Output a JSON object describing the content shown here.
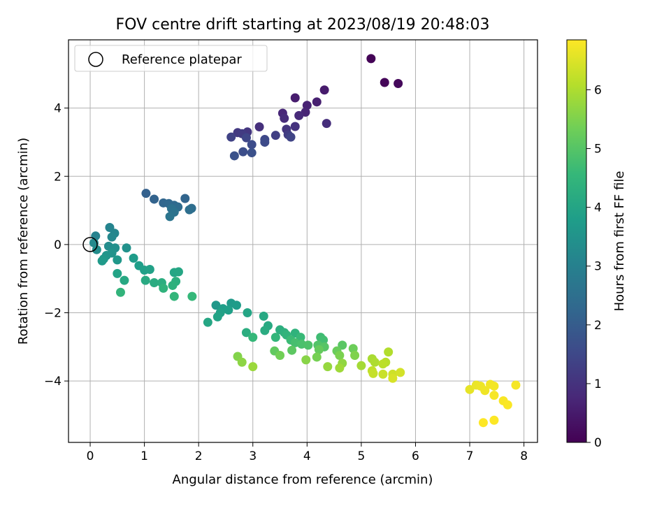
{
  "chart_data": {
    "type": "scatter",
    "title": "FOV centre drift starting at 2023/08/19 20:48:03",
    "xlabel": "Angular distance from reference (arcmin)",
    "ylabel": "Rotation from reference (arcmin)",
    "xlim": [
      -0.4,
      8.25
    ],
    "ylim": [
      -5.8,
      6.0
    ],
    "xticks": [
      0,
      1,
      2,
      3,
      4,
      5,
      6,
      7,
      8
    ],
    "yticks": [
      -4,
      -2,
      0,
      2,
      4
    ],
    "xtick_labels": [
      "0",
      "1",
      "2",
      "3",
      "4",
      "5",
      "6",
      "7",
      "8"
    ],
    "ytick_labels": [
      "−4",
      "−2",
      "0",
      "2",
      "4"
    ],
    "grid": true,
    "legend": {
      "position": "top-left",
      "entries": [
        {
          "label": "Reference platepar",
          "marker": "open-circle"
        }
      ]
    },
    "reference_point": {
      "x": 0,
      "y": 0
    },
    "colorbar": {
      "label": "Hours from first FF file",
      "colormap": "viridis",
      "range": [
        0,
        6.85
      ],
      "ticks": [
        0,
        1,
        2,
        3,
        4,
        5,
        6
      ],
      "tick_labels": [
        "0",
        "1",
        "2",
        "3",
        "4",
        "5",
        "6"
      ]
    },
    "points": [
      {
        "x": 5.18,
        "y": 5.45,
        "c": 0.05
      },
      {
        "x": 5.43,
        "y": 4.75,
        "c": 0.1
      },
      {
        "x": 5.68,
        "y": 4.72,
        "c": 0.15
      },
      {
        "x": 4.32,
        "y": 4.53,
        "c": 0.5
      },
      {
        "x": 3.78,
        "y": 4.3,
        "c": 0.55
      },
      {
        "x": 4.18,
        "y": 4.18,
        "c": 0.6
      },
      {
        "x": 4.0,
        "y": 4.08,
        "c": 0.65
      },
      {
        "x": 3.97,
        "y": 3.88,
        "c": 0.7
      },
      {
        "x": 3.55,
        "y": 3.85,
        "c": 0.75
      },
      {
        "x": 3.85,
        "y": 3.78,
        "c": 0.8
      },
      {
        "x": 3.58,
        "y": 3.7,
        "c": 0.85
      },
      {
        "x": 4.36,
        "y": 3.55,
        "c": 0.9
      },
      {
        "x": 3.12,
        "y": 3.45,
        "c": 0.95
      },
      {
        "x": 3.78,
        "y": 3.46,
        "c": 1.0
      },
      {
        "x": 3.62,
        "y": 3.38,
        "c": 1.05
      },
      {
        "x": 2.9,
        "y": 3.3,
        "c": 1.1
      },
      {
        "x": 2.72,
        "y": 3.28,
        "c": 1.15
      },
      {
        "x": 2.8,
        "y": 3.25,
        "c": 1.2
      },
      {
        "x": 3.65,
        "y": 3.22,
        "c": 1.25
      },
      {
        "x": 3.42,
        "y": 3.2,
        "c": 1.3
      },
      {
        "x": 2.6,
        "y": 3.15,
        "c": 1.35
      },
      {
        "x": 3.7,
        "y": 3.15,
        "c": 1.4
      },
      {
        "x": 2.88,
        "y": 3.13,
        "c": 1.45
      },
      {
        "x": 3.22,
        "y": 3.08,
        "c": 1.5
      },
      {
        "x": 3.22,
        "y": 3.0,
        "c": 1.55
      },
      {
        "x": 2.98,
        "y": 2.93,
        "c": 1.6
      },
      {
        "x": 2.82,
        "y": 2.72,
        "c": 1.65
      },
      {
        "x": 2.98,
        "y": 2.69,
        "c": 1.7
      },
      {
        "x": 2.66,
        "y": 2.6,
        "c": 1.75
      },
      {
        "x": 1.03,
        "y": 1.5,
        "c": 2.1
      },
      {
        "x": 1.18,
        "y": 1.33,
        "c": 2.15
      },
      {
        "x": 1.75,
        "y": 1.35,
        "c": 2.2
      },
      {
        "x": 1.35,
        "y": 1.22,
        "c": 2.25
      },
      {
        "x": 1.45,
        "y": 1.2,
        "c": 2.3
      },
      {
        "x": 1.55,
        "y": 1.15,
        "c": 2.35
      },
      {
        "x": 1.62,
        "y": 1.1,
        "c": 2.4
      },
      {
        "x": 1.87,
        "y": 1.06,
        "c": 2.45
      },
      {
        "x": 1.83,
        "y": 1.02,
        "c": 2.5
      },
      {
        "x": 1.5,
        "y": 1.05,
        "c": 2.55
      },
      {
        "x": 1.55,
        "y": 0.95,
        "c": 2.6
      },
      {
        "x": 1.47,
        "y": 0.82,
        "c": 2.65
      },
      {
        "x": 0.1,
        "y": 0.25,
        "c": 3.05
      },
      {
        "x": 0.36,
        "y": 0.5,
        "c": 3.1
      },
      {
        "x": 0.45,
        "y": 0.33,
        "c": 3.15
      },
      {
        "x": 0.4,
        "y": 0.22,
        "c": 3.2
      },
      {
        "x": 0.07,
        "y": 0.05,
        "c": 3.25
      },
      {
        "x": 0.34,
        "y": -0.05,
        "c": 3.3
      },
      {
        "x": 0.12,
        "y": -0.15,
        "c": 3.35
      },
      {
        "x": 0.46,
        "y": -0.1,
        "c": 3.4
      },
      {
        "x": 0.67,
        "y": -0.1,
        "c": 3.45
      },
      {
        "x": 0.4,
        "y": -0.25,
        "c": 3.5
      },
      {
        "x": 0.3,
        "y": -0.32,
        "c": 3.55
      },
      {
        "x": 0.25,
        "y": -0.42,
        "c": 3.6
      },
      {
        "x": 0.5,
        "y": -0.45,
        "c": 3.65
      },
      {
        "x": 0.22,
        "y": -0.48,
        "c": 3.7
      },
      {
        "x": 0.8,
        "y": -0.4,
        "c": 3.75
      },
      {
        "x": 0.9,
        "y": -0.62,
        "c": 3.8
      },
      {
        "x": 1.0,
        "y": -0.75,
        "c": 3.85
      },
      {
        "x": 1.1,
        "y": -0.73,
        "c": 3.9
      },
      {
        "x": 0.5,
        "y": -0.85,
        "c": 3.95
      },
      {
        "x": 1.55,
        "y": -0.82,
        "c": 4.0
      },
      {
        "x": 1.63,
        "y": -0.8,
        "c": 4.05
      },
      {
        "x": 0.63,
        "y": -1.05,
        "c": 4.1
      },
      {
        "x": 1.02,
        "y": -1.05,
        "c": 4.15
      },
      {
        "x": 1.18,
        "y": -1.12,
        "c": 4.2
      },
      {
        "x": 1.32,
        "y": -1.12,
        "c": 4.25
      },
      {
        "x": 1.58,
        "y": -1.08,
        "c": 4.3
      },
      {
        "x": 1.52,
        "y": -1.2,
        "c": 4.35
      },
      {
        "x": 1.35,
        "y": -1.28,
        "c": 4.4
      },
      {
        "x": 0.56,
        "y": -1.4,
        "c": 4.45
      },
      {
        "x": 1.55,
        "y": -1.52,
        "c": 4.5
      },
      {
        "x": 1.88,
        "y": -1.52,
        "c": 4.55
      },
      {
        "x": 2.32,
        "y": -1.78,
        "c": 3.65
      },
      {
        "x": 2.6,
        "y": -1.72,
        "c": 3.7
      },
      {
        "x": 2.7,
        "y": -1.78,
        "c": 3.75
      },
      {
        "x": 2.45,
        "y": -1.88,
        "c": 3.8
      },
      {
        "x": 2.55,
        "y": -1.92,
        "c": 3.85
      },
      {
        "x": 2.4,
        "y": -2.0,
        "c": 3.9
      },
      {
        "x": 2.35,
        "y": -2.12,
        "c": 3.95
      },
      {
        "x": 2.9,
        "y": -2.0,
        "c": 4.0
      },
      {
        "x": 2.17,
        "y": -2.28,
        "c": 4.05
      },
      {
        "x": 3.2,
        "y": -2.1,
        "c": 4.1
      },
      {
        "x": 3.28,
        "y": -2.38,
        "c": 4.15
      },
      {
        "x": 3.22,
        "y": -2.52,
        "c": 4.2
      },
      {
        "x": 2.88,
        "y": -2.58,
        "c": 4.25
      },
      {
        "x": 3.5,
        "y": -2.5,
        "c": 4.3
      },
      {
        "x": 3.58,
        "y": -2.58,
        "c": 4.35
      },
      {
        "x": 3.78,
        "y": -2.6,
        "c": 4.4
      },
      {
        "x": 3.62,
        "y": -2.65,
        "c": 4.45
      },
      {
        "x": 3.42,
        "y": -2.72,
        "c": 4.5
      },
      {
        "x": 3.0,
        "y": -2.72,
        "c": 4.55
      },
      {
        "x": 3.88,
        "y": -2.72,
        "c": 4.6
      },
      {
        "x": 3.7,
        "y": -2.8,
        "c": 4.65
      },
      {
        "x": 4.25,
        "y": -2.72,
        "c": 4.7
      },
      {
        "x": 4.3,
        "y": -2.8,
        "c": 4.75
      },
      {
        "x": 3.78,
        "y": -2.88,
        "c": 4.8
      },
      {
        "x": 3.9,
        "y": -2.92,
        "c": 4.85
      },
      {
        "x": 4.02,
        "y": -2.95,
        "c": 4.9
      },
      {
        "x": 4.2,
        "y": -2.95,
        "c": 4.95
      },
      {
        "x": 4.32,
        "y": -3.0,
        "c": 5.0
      },
      {
        "x": 4.65,
        "y": -2.95,
        "c": 5.05
      },
      {
        "x": 3.72,
        "y": -3.1,
        "c": 5.1
      },
      {
        "x": 3.4,
        "y": -3.12,
        "c": 5.15
      },
      {
        "x": 4.22,
        "y": -3.08,
        "c": 5.2
      },
      {
        "x": 4.55,
        "y": -3.12,
        "c": 5.25
      },
      {
        "x": 4.85,
        "y": -3.05,
        "c": 5.3
      },
      {
        "x": 3.5,
        "y": -3.25,
        "c": 5.35
      },
      {
        "x": 4.18,
        "y": -3.3,
        "c": 5.4
      },
      {
        "x": 4.6,
        "y": -3.25,
        "c": 5.45
      },
      {
        "x": 4.88,
        "y": -3.25,
        "c": 5.5
      },
      {
        "x": 2.72,
        "y": -3.28,
        "c": 5.55
      },
      {
        "x": 3.98,
        "y": -3.38,
        "c": 5.6
      },
      {
        "x": 2.8,
        "y": -3.45,
        "c": 5.65
      },
      {
        "x": 4.65,
        "y": -3.48,
        "c": 5.7
      },
      {
        "x": 4.38,
        "y": -3.58,
        "c": 5.75
      },
      {
        "x": 3.0,
        "y": -3.58,
        "c": 5.8
      },
      {
        "x": 4.6,
        "y": -3.62,
        "c": 5.85
      },
      {
        "x": 5.0,
        "y": -3.55,
        "c": 5.9
      },
      {
        "x": 5.2,
        "y": -3.35,
        "c": 5.95
      },
      {
        "x": 5.25,
        "y": -3.45,
        "c": 6.0
      },
      {
        "x": 5.5,
        "y": -3.15,
        "c": 6.05
      },
      {
        "x": 5.45,
        "y": -3.45,
        "c": 6.1
      },
      {
        "x": 5.4,
        "y": -3.5,
        "c": 6.15
      },
      {
        "x": 5.2,
        "y": -3.7,
        "c": 6.2
      },
      {
        "x": 5.22,
        "y": -3.78,
        "c": 6.25
      },
      {
        "x": 5.4,
        "y": -3.8,
        "c": 6.3
      },
      {
        "x": 5.58,
        "y": -3.8,
        "c": 6.35
      },
      {
        "x": 5.72,
        "y": -3.75,
        "c": 6.4
      },
      {
        "x": 5.58,
        "y": -3.92,
        "c": 6.45
      },
      {
        "x": 7.0,
        "y": -4.25,
        "c": 6.6
      },
      {
        "x": 7.12,
        "y": -4.12,
        "c": 6.65
      },
      {
        "x": 7.2,
        "y": -4.15,
        "c": 6.68
      },
      {
        "x": 7.28,
        "y": -4.28,
        "c": 6.7
      },
      {
        "x": 7.38,
        "y": -4.1,
        "c": 6.72
      },
      {
        "x": 7.45,
        "y": -4.15,
        "c": 6.74
      },
      {
        "x": 7.85,
        "y": -4.12,
        "c": 6.76
      },
      {
        "x": 7.45,
        "y": -4.42,
        "c": 6.78
      },
      {
        "x": 7.62,
        "y": -4.58,
        "c": 6.8
      },
      {
        "x": 7.7,
        "y": -4.7,
        "c": 6.82
      },
      {
        "x": 7.45,
        "y": -5.15,
        "c": 6.84
      },
      {
        "x": 7.25,
        "y": -5.22,
        "c": 6.85
      }
    ]
  }
}
